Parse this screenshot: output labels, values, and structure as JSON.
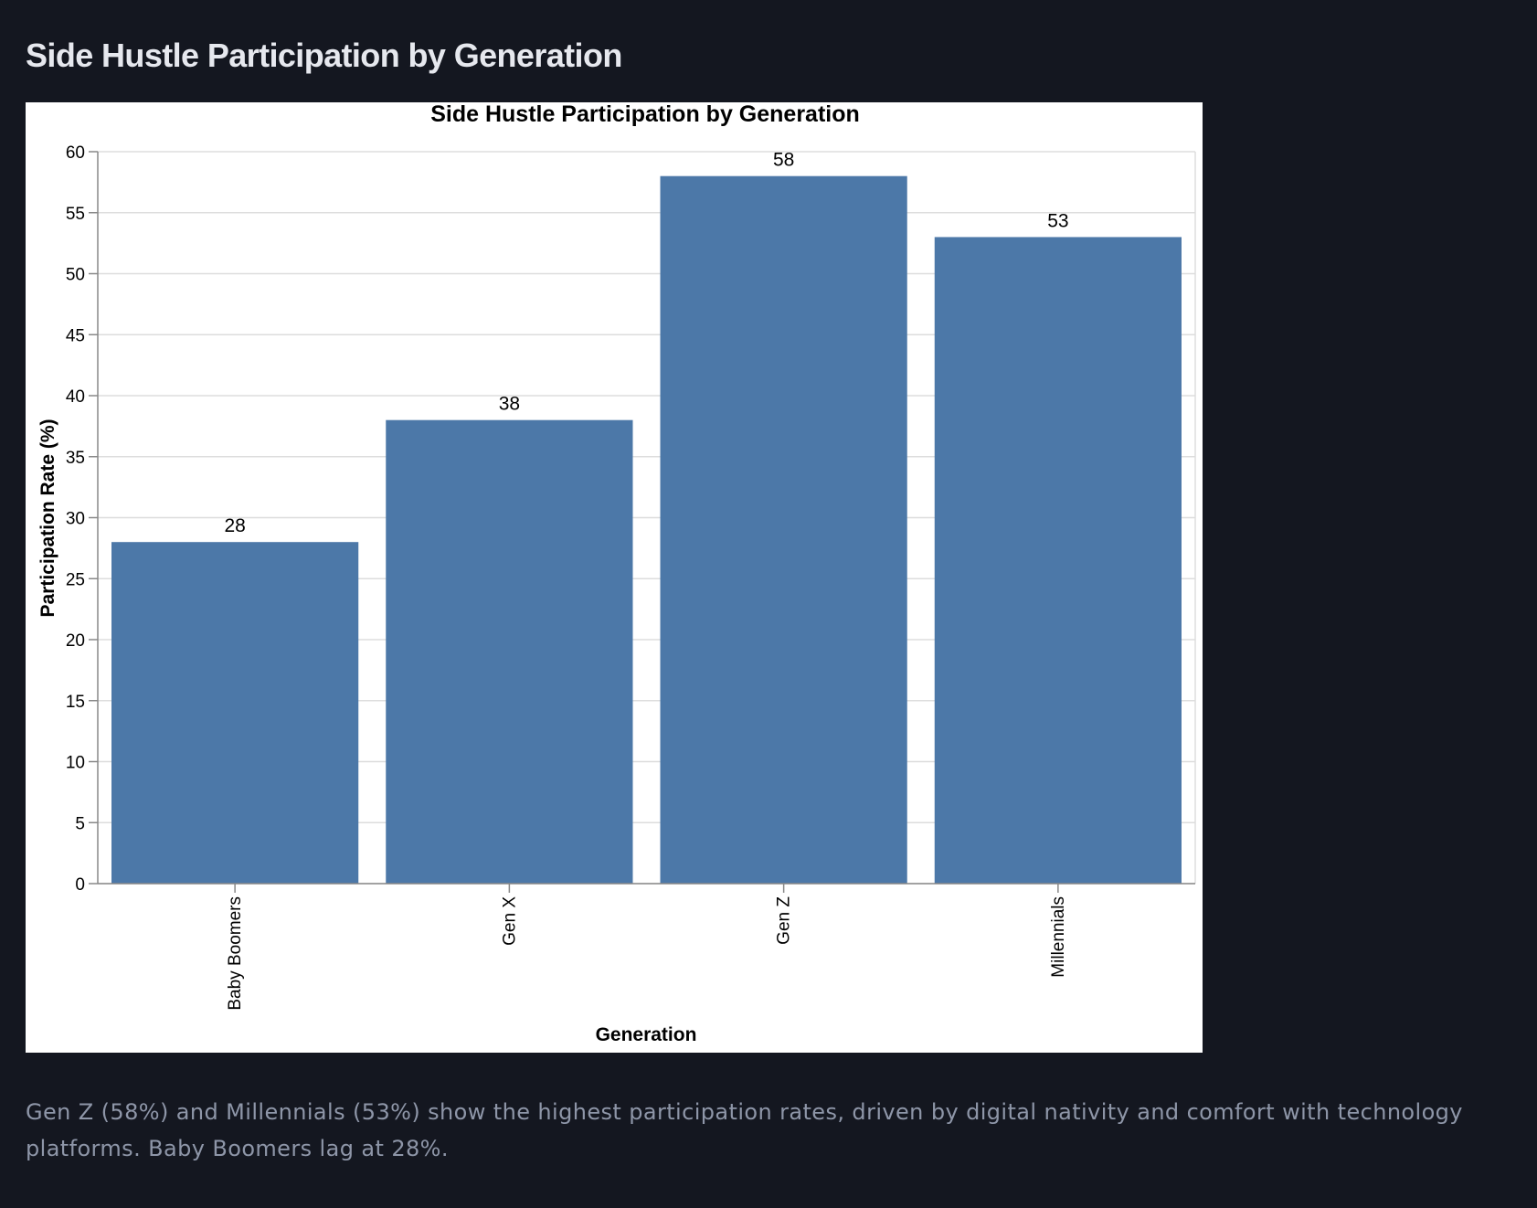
{
  "page": {
    "title": "Side Hustle Participation by Generation",
    "caption": "Gen Z (58%) and Millennials (53%) show the highest participation rates, driven by digital nativity and comfort with technology platforms. Baby Boomers lag at 28%."
  },
  "colors": {
    "background": "#141720",
    "bar": "#4c78a8",
    "grid": "#dddddd",
    "axis": "#888888"
  },
  "chart_data": {
    "type": "bar",
    "title": "Side Hustle Participation by Generation",
    "xlabel": "Generation",
    "ylabel": "Participation Rate (%)",
    "categories": [
      "Baby Boomers",
      "Gen X",
      "Gen Z",
      "Millennials"
    ],
    "values": [
      28,
      38,
      58,
      53
    ],
    "ylim": [
      0,
      60
    ],
    "yticks": [
      0,
      5,
      10,
      15,
      20,
      25,
      30,
      35,
      40,
      45,
      50,
      55,
      60
    ],
    "grid": true,
    "data_labels": true
  }
}
